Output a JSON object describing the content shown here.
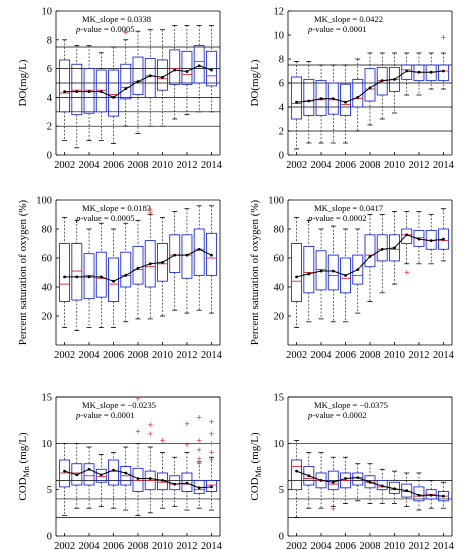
{
  "chart_data": [
    {
      "type": "box",
      "panel": "top-left",
      "ylabel": "DO(mg/L)",
      "ylim": [
        0,
        10
      ],
      "yticks": [
        0,
        2,
        4,
        6,
        8,
        10
      ],
      "x_ticks": [
        2002,
        2004,
        2006,
        2008,
        2010,
        2012,
        2014
      ],
      "annotations": [
        "MK_slope = 0.0338",
        "p-value = 0.0005"
      ],
      "reference_lines": [
        2,
        3,
        4,
        5,
        6,
        7.5
      ],
      "years": [
        2002,
        2003,
        2004,
        2005,
        2006,
        2007,
        2008,
        2009,
        2010,
        2011,
        2012,
        2013,
        2014
      ],
      "boxes": [
        {
          "whislo": 1.0,
          "q1": 3.0,
          "med": 4.3,
          "q3": 6.6,
          "whishi": 8.0,
          "mean": 4.4
        },
        {
          "whislo": 0.5,
          "q1": 2.8,
          "med": 4.5,
          "q3": 6.3,
          "whishi": 7.6,
          "mean": 4.4
        },
        {
          "whislo": 1.0,
          "q1": 2.9,
          "med": 4.5,
          "q3": 6.0,
          "whishi": 7.6,
          "mean": 4.4
        },
        {
          "whislo": 1.0,
          "q1": 3.0,
          "med": 4.5,
          "q3": 5.9,
          "whishi": 7.1,
          "mean": 4.4
        },
        {
          "whislo": 0.8,
          "q1": 2.7,
          "med": 4.2,
          "q3": 5.9,
          "whishi": 7.5,
          "mean": 4.0
        },
        {
          "whislo": 2.0,
          "q1": 3.9,
          "med": 4.7,
          "q3": 6.3,
          "whishi": 8.0,
          "mean": 4.6
        },
        {
          "whislo": 1.5,
          "q1": 4.2,
          "med": 5.1,
          "q3": 6.8,
          "whishi": 8.6,
          "mean": 5.1
        },
        {
          "whislo": 2.0,
          "q1": 4.0,
          "med": 5.5,
          "q3": 6.7,
          "whishi": 8.7,
          "mean": 5.5
        },
        {
          "whislo": 2.0,
          "q1": 4.5,
          "med": 5.3,
          "q3": 6.6,
          "whishi": 8.7,
          "mean": 5.4
        },
        {
          "whislo": 2.5,
          "q1": 4.9,
          "med": 6.0,
          "q3": 7.3,
          "whishi": 9.0,
          "mean": 5.9
        },
        {
          "whislo": 2.8,
          "q1": 4.9,
          "med": 5.6,
          "q3": 7.2,
          "whishi": 9.0,
          "mean": 5.8
        },
        {
          "whislo": 3.0,
          "q1": 5.0,
          "med": 6.5,
          "q3": 7.6,
          "whishi": 9.0,
          "mean": 6.2
        },
        {
          "whislo": 3.0,
          "q1": 4.8,
          "med": 5.5,
          "q3": 7.2,
          "whishi": 9.0,
          "mean": 5.9
        }
      ],
      "outliers": [
        {
          "year": 2007,
          "value": 8.5
        }
      ]
    },
    {
      "type": "box",
      "panel": "top-right",
      "ylabel": "DO(mg/L)",
      "ylim": [
        0,
        12
      ],
      "yticks": [
        0,
        2,
        4,
        6,
        8,
        10,
        12
      ],
      "x_ticks": [
        2002,
        2004,
        2006,
        2008,
        2010,
        2012,
        2014
      ],
      "annotations": [
        "MK_slope = 0.0422",
        "p-value = 0.0001"
      ],
      "reference_lines": [
        2,
        4,
        6,
        7.5
      ],
      "years": [
        2002,
        2003,
        2004,
        2005,
        2006,
        2007,
        2008,
        2009,
        2010,
        2011,
        2012,
        2013,
        2014
      ],
      "boxes": [
        {
          "whislo": 0.5,
          "q1": 3.0,
          "med": 4.3,
          "q3": 6.5,
          "whishi": 7.8,
          "mean": 4.4
        },
        {
          "whislo": 1.0,
          "q1": 3.3,
          "med": 4.5,
          "q3": 6.3,
          "whishi": 7.8,
          "mean": 4.5
        },
        {
          "whislo": 1.0,
          "q1": 3.3,
          "med": 4.6,
          "q3": 6.2,
          "whishi": 7.5,
          "mean": 4.7
        },
        {
          "whislo": 1.0,
          "q1": 3.4,
          "med": 4.6,
          "q3": 6.0,
          "whishi": 7.5,
          "mean": 4.7
        },
        {
          "whislo": 1.0,
          "q1": 3.3,
          "med": 4.2,
          "q3": 5.9,
          "whishi": 7.5,
          "mean": 4.4
        },
        {
          "whislo": 2.0,
          "q1": 4.0,
          "med": 4.7,
          "q3": 6.3,
          "whishi": 8.0,
          "mean": 4.8
        },
        {
          "whislo": 2.5,
          "q1": 4.5,
          "med": 5.5,
          "q3": 7.2,
          "whishi": 8.5,
          "mean": 5.6
        },
        {
          "whislo": 3.0,
          "q1": 5.0,
          "med": 6.2,
          "q3": 7.3,
          "whishi": 8.5,
          "mean": 6.2
        },
        {
          "whislo": 3.5,
          "q1": 5.3,
          "med": 6.3,
          "q3": 7.3,
          "whishi": 8.5,
          "mean": 6.3
        },
        {
          "whislo": 5.0,
          "q1": 6.3,
          "med": 7.1,
          "q3": 7.5,
          "whishi": 8.5,
          "mean": 7.0
        },
        {
          "whislo": 5.0,
          "q1": 6.2,
          "med": 6.9,
          "q3": 7.5,
          "whishi": 8.5,
          "mean": 6.9
        },
        {
          "whislo": 5.5,
          "q1": 6.2,
          "med": 6.9,
          "q3": 7.5,
          "whishi": 8.5,
          "mean": 6.9
        },
        {
          "whislo": 5.5,
          "q1": 6.2,
          "med": 7.0,
          "q3": 7.5,
          "whishi": 8.5,
          "mean": 7.0
        }
      ],
      "outliers": [
        {
          "year": 2014,
          "value": 9.8
        }
      ]
    },
    {
      "type": "box",
      "panel": "middle-left",
      "ylabel": "Percent saturation of oxygen (%)",
      "ylim": [
        0,
        100
      ],
      "yticks": [
        20,
        40,
        60,
        80,
        100
      ],
      "x_ticks": [
        2002,
        2004,
        2006,
        2008,
        2010,
        2012,
        2014
      ],
      "annotations": [
        "MK_slope = 0.0183",
        "p-value = 0.0005"
      ],
      "reference_lines": [],
      "years": [
        2002,
        2003,
        2004,
        2005,
        2006,
        2007,
        2008,
        2009,
        2010,
        2011,
        2012,
        2013,
        2014
      ],
      "boxes": [
        {
          "whislo": 12,
          "q1": 30,
          "med": 42,
          "q3": 70,
          "whishi": 88,
          "mean": 47
        },
        {
          "whislo": 10,
          "q1": 31,
          "med": 51,
          "q3": 70,
          "whishi": 86,
          "mean": 47
        },
        {
          "whislo": 12,
          "q1": 32,
          "med": 48,
          "q3": 63,
          "whishi": 80,
          "mean": 47
        },
        {
          "whislo": 12,
          "q1": 33,
          "med": 46,
          "q3": 64,
          "whishi": 84,
          "mean": 47
        },
        {
          "whislo": 12,
          "q1": 30,
          "med": 42,
          "q3": 60,
          "whishi": 80,
          "mean": 44
        },
        {
          "whislo": 16,
          "q1": 40,
          "med": 48,
          "q3": 64,
          "whishi": 84,
          "mean": 48
        },
        {
          "whislo": 18,
          "q1": 42,
          "med": 52,
          "q3": 68,
          "whishi": 86,
          "mean": 53
        },
        {
          "whislo": 18,
          "q1": 40,
          "med": 54,
          "q3": 72,
          "whishi": 90,
          "mean": 56
        },
        {
          "whislo": 20,
          "q1": 44,
          "med": 56,
          "q3": 70,
          "whishi": 88,
          "mean": 57
        },
        {
          "whislo": 24,
          "q1": 50,
          "med": 62,
          "q3": 76,
          "whishi": 92,
          "mean": 62
        },
        {
          "whislo": 22,
          "q1": 46,
          "med": 62,
          "q3": 76,
          "whishi": 94,
          "mean": 62
        },
        {
          "whislo": 24,
          "q1": 48,
          "med": 66,
          "q3": 80,
          "whishi": 96,
          "mean": 66
        },
        {
          "whislo": 22,
          "q1": 48,
          "med": 60,
          "q3": 77,
          "whishi": 96,
          "mean": 62
        }
      ],
      "outliers": [
        {
          "year": 2009,
          "value": 91
        },
        {
          "year": 2009,
          "value": 93
        }
      ]
    },
    {
      "type": "box",
      "panel": "middle-right",
      "ylabel": "Percent saturation of oxygen (%)",
      "ylim": [
        0,
        100
      ],
      "yticks": [
        20,
        40,
        60,
        80,
        100
      ],
      "x_ticks": [
        2002,
        2004,
        2006,
        2008,
        2010,
        2012,
        2014
      ],
      "annotations": [
        "MK_slope = 0.0417",
        "p-value = 0.0002"
      ],
      "reference_lines": [],
      "years": [
        2002,
        2003,
        2004,
        2005,
        2006,
        2007,
        2008,
        2009,
        2010,
        2011,
        2012,
        2013,
        2014
      ],
      "boxes": [
        {
          "whislo": 12,
          "q1": 30,
          "med": 44,
          "q3": 70,
          "whishi": 88,
          "mean": 47
        },
        {
          "whislo": 16,
          "q1": 36,
          "med": 50,
          "q3": 68,
          "whishi": 86,
          "mean": 49
        },
        {
          "whislo": 18,
          "q1": 38,
          "med": 52,
          "q3": 65,
          "whishi": 80,
          "mean": 51
        },
        {
          "whislo": 16,
          "q1": 38,
          "med": 48,
          "q3": 62,
          "whishi": 82,
          "mean": 51
        },
        {
          "whislo": 16,
          "q1": 36,
          "med": 46,
          "q3": 60,
          "whishi": 80,
          "mean": 48
        },
        {
          "whislo": 22,
          "q1": 42,
          "med": 48,
          "q3": 62,
          "whishi": 80,
          "mean": 52
        },
        {
          "whislo": 30,
          "q1": 54,
          "med": 62,
          "q3": 76,
          "whishi": 90,
          "mean": 61
        },
        {
          "whislo": 36,
          "q1": 58,
          "med": 66,
          "q3": 76,
          "whishi": 90,
          "mean": 66
        },
        {
          "whislo": 42,
          "q1": 58,
          "med": 66,
          "q3": 76,
          "whishi": 92,
          "mean": 67
        },
        {
          "whislo": 56,
          "q1": 70,
          "med": 76,
          "q3": 80,
          "whishi": 92,
          "mean": 76
        },
        {
          "whislo": 56,
          "q1": 68,
          "med": 74,
          "q3": 79,
          "whishi": 92,
          "mean": 73
        },
        {
          "whislo": 56,
          "q1": 66,
          "med": 72,
          "q3": 79,
          "whishi": 90,
          "mean": 72
        },
        {
          "whislo": 58,
          "q1": 66,
          "med": 72,
          "q3": 80,
          "whishi": 94,
          "mean": 73
        }
      ],
      "outliers": [
        {
          "year": 2011,
          "value": 50
        }
      ]
    },
    {
      "type": "box",
      "panel": "bottom-left",
      "ylabel_main": "COD",
      "ylabel_sub": "Mn",
      "ylabel_unit": " (mg/L)",
      "ylim": [
        0,
        15
      ],
      "yticks": [
        0,
        5,
        10,
        15
      ],
      "x_ticks": [
        2002,
        2004,
        2006,
        2008,
        2010,
        2012,
        2014
      ],
      "annotations": [
        "MK_slope = −0.0235",
        "p-value = 0.0001"
      ],
      "reference_lines": [
        2,
        4,
        6,
        10,
        15
      ],
      "years": [
        2002,
        2003,
        2004,
        2005,
        2006,
        2007,
        2008,
        2009,
        2010,
        2011,
        2012,
        2013,
        2014
      ],
      "boxes": [
        {
          "whislo": 2.2,
          "q1": 5.3,
          "med": 6.8,
          "q3": 8.2,
          "whishi": 10.0,
          "mean": 7.0
        },
        {
          "whislo": 3.0,
          "q1": 5.5,
          "med": 6.8,
          "q3": 7.8,
          "whishi": 10.0,
          "mean": 6.6
        },
        {
          "whislo": 3.0,
          "q1": 5.5,
          "med": 6.5,
          "q3": 7.8,
          "whishi": 9.6,
          "mean": 7.2
        },
        {
          "whislo": 3.2,
          "q1": 5.8,
          "med": 6.4,
          "q3": 7.2,
          "whishi": 8.8,
          "mean": 6.6
        },
        {
          "whislo": 3.0,
          "q1": 5.5,
          "med": 7.0,
          "q3": 8.2,
          "whishi": 9.0,
          "mean": 7.1
        },
        {
          "whislo": 2.8,
          "q1": 5.5,
          "med": 6.5,
          "q3": 7.5,
          "whishi": 9.6,
          "mean": 6.8
        },
        {
          "whislo": 2.2,
          "q1": 4.8,
          "med": 6.0,
          "q3": 7.3,
          "whishi": 10.0,
          "mean": 6.2
        },
        {
          "whislo": 2.5,
          "q1": 5.0,
          "med": 6.0,
          "q3": 7.0,
          "whishi": 9.6,
          "mean": 6.2
        },
        {
          "whislo": 3.0,
          "q1": 5.0,
          "med": 5.8,
          "q3": 6.8,
          "whishi": 9.0,
          "mean": 6.0
        },
        {
          "whislo": 3.2,
          "q1": 5.0,
          "med": 5.6,
          "q3": 6.5,
          "whishi": 8.5,
          "mean": 5.6
        },
        {
          "whislo": 2.8,
          "q1": 4.8,
          "med": 5.6,
          "q3": 6.8,
          "whishi": 9.0,
          "mean": 5.7
        },
        {
          "whislo": 3.0,
          "q1": 4.6,
          "med": 5.0,
          "q3": 6.0,
          "whishi": 8.0,
          "mean": 5.2
        },
        {
          "whislo": 2.8,
          "q1": 4.8,
          "med": 5.5,
          "q3": 6.0,
          "whishi": 8.5,
          "mean": 5.3
        }
      ],
      "outliers": [
        {
          "year": 2008,
          "value": 14.8
        },
        {
          "year": 2008,
          "value": 11.3
        },
        {
          "year": 2009,
          "value": 11.0
        },
        {
          "year": 2009,
          "value": 12.0
        },
        {
          "year": 2010,
          "value": 10.3
        },
        {
          "year": 2012,
          "value": 9.8
        },
        {
          "year": 2012,
          "value": 12.1
        },
        {
          "year": 2013,
          "value": 12.8
        },
        {
          "year": 2013,
          "value": 10.3
        },
        {
          "year": 2013,
          "value": 9.3
        },
        {
          "year": 2013,
          "value": 8.3
        },
        {
          "year": 2013,
          "value": 7.8
        },
        {
          "year": 2014,
          "value": 12.3
        },
        {
          "year": 2014,
          "value": 11.0
        },
        {
          "year": 2014,
          "value": 10.0
        },
        {
          "year": 2014,
          "value": 9.0
        },
        {
          "year": 2014,
          "value": 8.2
        }
      ]
    },
    {
      "type": "box",
      "panel": "bottom-right",
      "ylabel_main": "COD",
      "ylabel_sub": "Mn",
      "ylabel_unit": " (mg/L)",
      "ylim": [
        0,
        15
      ],
      "yticks": [
        0,
        5,
        10,
        15
      ],
      "x_ticks": [
        2002,
        2004,
        2006,
        2008,
        2010,
        2012,
        2014
      ],
      "annotations": [
        "MK_slope = −0.0375",
        "p-value = 0.0002"
      ],
      "reference_lines": [
        2,
        4,
        6,
        10,
        15
      ],
      "years": [
        2002,
        2003,
        2004,
        2005,
        2006,
        2007,
        2008,
        2009,
        2010,
        2011,
        2012,
        2013,
        2014
      ],
      "boxes": [
        {
          "whislo": 2.0,
          "q1": 5.0,
          "med": 7.5,
          "q3": 8.2,
          "whishi": 10.3,
          "mean": 7.0
        },
        {
          "whislo": 3.0,
          "q1": 5.5,
          "med": 6.2,
          "q3": 7.5,
          "whishi": 9.0,
          "mean": 6.5
        },
        {
          "whislo": 3.0,
          "q1": 5.2,
          "med": 6.0,
          "q3": 6.8,
          "whishi": 9.0,
          "mean": 6.0
        },
        {
          "whislo": 3.2,
          "q1": 5.0,
          "med": 5.6,
          "q3": 7.0,
          "whishi": 8.5,
          "mean": 5.8
        },
        {
          "whislo": 3.5,
          "q1": 5.2,
          "med": 6.0,
          "q3": 6.8,
          "whishi": 8.5,
          "mean": 6.2
        },
        {
          "whislo": 3.8,
          "q1": 5.5,
          "med": 6.3,
          "q3": 6.8,
          "whishi": 7.8,
          "mean": 6.3
        },
        {
          "whislo": 3.5,
          "q1": 5.2,
          "med": 5.8,
          "q3": 6.5,
          "whishi": 7.8,
          "mean": 5.8
        },
        {
          "whislo": 3.5,
          "q1": 5.0,
          "med": 5.3,
          "q3": 6.0,
          "whishi": 7.2,
          "mean": 5.4
        },
        {
          "whislo": 3.5,
          "q1": 4.6,
          "med": 5.0,
          "q3": 5.8,
          "whishi": 7.0,
          "mean": 5.1
        },
        {
          "whislo": 3.2,
          "q1": 4.2,
          "med": 4.8,
          "q3": 5.6,
          "whishi": 6.8,
          "mean": 4.9
        },
        {
          "whislo": 2.8,
          "q1": 3.8,
          "med": 4.3,
          "q3": 5.3,
          "whishi": 6.8,
          "mean": 4.4
        },
        {
          "whislo": 3.0,
          "q1": 4.0,
          "med": 4.5,
          "q3": 5.0,
          "whishi": 6.0,
          "mean": 4.4
        },
        {
          "whislo": 3.0,
          "q1": 3.8,
          "med": 4.3,
          "q3": 4.8,
          "whishi": 5.8,
          "mean": 4.3
        }
      ],
      "outliers": [
        {
          "year": 2005,
          "value": 2.9
        }
      ]
    }
  ],
  "colors": {
    "box": "#1f2fd8",
    "median": "#e0222e",
    "outlier": "#e0222e",
    "trend": "#000000",
    "reference": "#000000"
  }
}
